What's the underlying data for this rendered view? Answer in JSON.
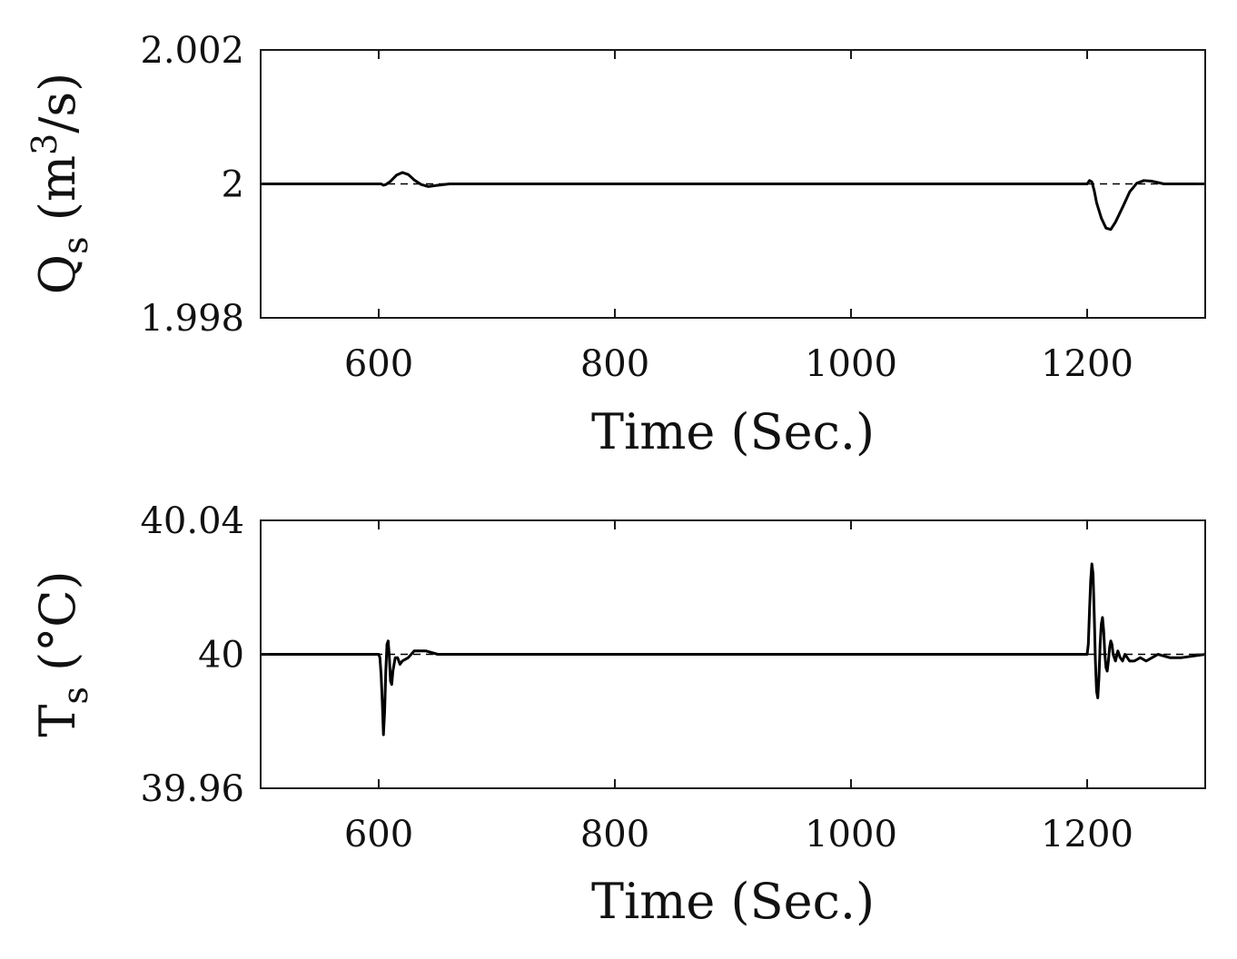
{
  "chart_data": [
    {
      "type": "line",
      "xlabel": "Time (Sec.)",
      "ylabel": {
        "base": "Q",
        "sub": "s",
        "unit_open": " (m",
        "sup": "3",
        "unit_close": "/s)"
      },
      "xlim": [
        500,
        1300
      ],
      "ylim": [
        1.998,
        2.002
      ],
      "xticks": [
        "600",
        "800",
        "1000",
        "1200"
      ],
      "yticks": [
        "1.998",
        "2",
        "2.002"
      ],
      "xtick_values": [
        600,
        800,
        1000,
        1200
      ],
      "ytick_values": [
        1.998,
        2.0,
        2.002
      ],
      "series": [
        {
          "style": "dashed",
          "x": [
            500,
            1300
          ],
          "y": [
            2.0,
            2.0
          ]
        },
        {
          "style": "solid",
          "x": [
            500,
            602,
            604,
            606,
            610,
            615,
            620,
            625,
            630,
            636,
            642,
            650,
            660,
            680,
            1200,
            1202,
            1204,
            1206,
            1208,
            1212,
            1216,
            1220,
            1224,
            1230,
            1236,
            1242,
            1248,
            1255,
            1265,
            1300
          ],
          "y": [
            2.0,
            2.0,
            1.99998,
            1.99999,
            2.00004,
            2.00013,
            2.00017,
            2.00014,
            2.00006,
            1.99999,
            1.99996,
            1.99998,
            2.0,
            2.0,
            2.0,
            2.00005,
            2.00003,
            1.9999,
            1.99972,
            1.99949,
            1.99934,
            1.99932,
            1.99943,
            1.99965,
            1.99988,
            2.00001,
            2.00005,
            2.00004,
            2.0,
            2.0
          ]
        }
      ]
    },
    {
      "type": "line",
      "xlabel": "Time (Sec.)",
      "ylabel": {
        "base": "T",
        "sub": "s",
        "unit_open": " (°C)",
        "sup": "",
        "unit_close": ""
      },
      "xlim": [
        500,
        1300
      ],
      "ylim": [
        39.96,
        40.04
      ],
      "xticks": [
        "600",
        "800",
        "1000",
        "1200"
      ],
      "yticks": [
        "39.96",
        "40",
        "40.04"
      ],
      "xtick_values": [
        600,
        800,
        1000,
        1200
      ],
      "ytick_values": [
        39.96,
        40.0,
        40.04
      ],
      "series": [
        {
          "style": "dashed",
          "x": [
            500,
            1300
          ],
          "y": [
            40.0,
            40.0
          ]
        },
        {
          "style": "solid",
          "x": [
            500,
            600,
            601,
            602,
            603,
            604,
            605,
            606,
            607,
            608,
            609,
            610,
            611,
            612,
            614,
            616,
            618,
            620,
            625,
            630,
            640,
            650,
            660,
            680,
            1200,
            1201,
            1202,
            1203,
            1204,
            1205,
            1206,
            1207,
            1208,
            1209,
            1210,
            1211,
            1212,
            1213,
            1214,
            1215,
            1216,
            1217,
            1218,
            1219,
            1220,
            1221,
            1222,
            1224,
            1226,
            1228,
            1230,
            1232,
            1234,
            1236,
            1240,
            1245,
            1250,
            1260,
            1270,
            1280,
            1300
          ],
          "y": [
            40.0,
            40.0,
            39.999,
            39.994,
            39.986,
            39.976,
            39.983,
            39.995,
            40.003,
            40.004,
            39.999,
            39.992,
            39.991,
            39.995,
            39.999,
            39.999,
            39.997,
            39.998,
            39.999,
            40.001,
            40.001,
            40.0,
            40.0,
            40.0,
            40.0,
            40.003,
            40.013,
            40.022,
            40.027,
            40.024,
            40.012,
            39.998,
            39.989,
            39.987,
            39.993,
            40.003,
            40.009,
            40.011,
            40.007,
            40.0,
            39.996,
            39.995,
            39.998,
            40.002,
            40.004,
            40.003,
            40.0,
            39.998,
            40.001,
            39.999,
            39.998,
            40.0,
            39.999,
            39.998,
            39.998,
            39.999,
            39.998,
            40.0,
            39.999,
            39.999,
            40.0
          ]
        }
      ]
    }
  ]
}
